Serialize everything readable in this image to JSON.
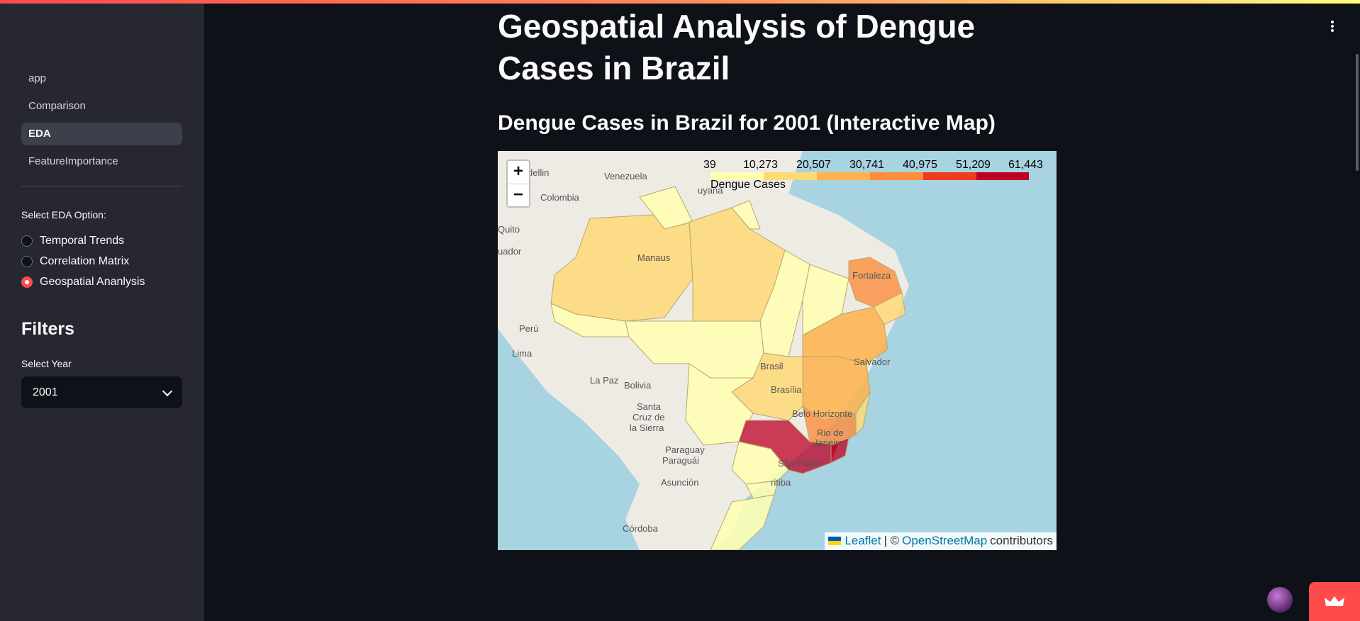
{
  "sidebar": {
    "nav": [
      {
        "label": "app"
      },
      {
        "label": "Comparison"
      },
      {
        "label": "EDA"
      },
      {
        "label": "FeatureImportance"
      }
    ],
    "active_nav": "EDA",
    "eda_option_label": "Select EDA Option:",
    "eda_options": [
      {
        "label": "Temporal Trends",
        "selected": false
      },
      {
        "label": "Correlation Matrix",
        "selected": false
      },
      {
        "label": "Geospatial Ananlysis",
        "selected": true
      }
    ],
    "filters_title": "Filters",
    "year_label": "Select Year",
    "year_value": "2001"
  },
  "main": {
    "title": "Geospatial Analysis of Dengue Cases in Brazil",
    "subtitle": "Dengue Cases in Brazil for 2001 (Interactive Map)"
  },
  "map": {
    "legend": {
      "ticks": [
        "39",
        "10,273",
        "20,507",
        "30,741",
        "40,975",
        "51,209",
        "61,443"
      ],
      "title": "Dengue Cases",
      "colors": [
        "#ffffb2",
        "#fed976",
        "#feb24c",
        "#fd8d3c",
        "#f03b20",
        "#bd0026"
      ]
    },
    "zoom_in": "+",
    "zoom_out": "−",
    "attribution": {
      "leaflet": "Leaflet",
      "separator": "| ©",
      "osm": "OpenStreetMap",
      "suffix": "contributors"
    },
    "place_labels": [
      "dellin",
      "Venezuela",
      "Colombia",
      "uyana",
      "Quito",
      "uador",
      "Manaus",
      "Fortaleza",
      "Perú",
      "Lima",
      "Brasil",
      "Brasília",
      "Salvador",
      "La Paz",
      "Bolivia",
      "Santa",
      "Cruz de",
      "la Sierra",
      "Belo Horizonte",
      "Rio de",
      "Janeiro",
      "Paraguay",
      "Paraguái",
      "São Paulo",
      "Asunción",
      "ritiba",
      "Córdoba"
    ]
  },
  "colors": {
    "background": "#0e1117",
    "sidebar": "#262730",
    "accent": "#ff4b4b"
  },
  "icons": {
    "menu": "kebab-menu-icon",
    "select": "chevron-down-icon",
    "crown": "crown-icon"
  }
}
